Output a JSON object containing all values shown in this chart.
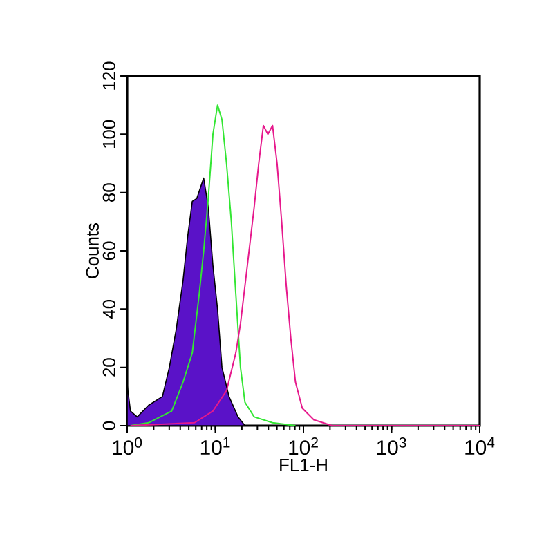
{
  "chart_data": {
    "type": "line",
    "xlabel": "FL1-H",
    "ylabel": "Counts",
    "log": "x",
    "grid": false,
    "marker": "none",
    "xlim": [
      1,
      10000
    ],
    "ylim": [
      0,
      120
    ],
    "xticks": [
      {
        "value": 1,
        "label": "10$^{0}$"
      },
      {
        "value": 10,
        "label": "10$^{1}$"
      },
      {
        "value": 100,
        "label": "10$^{2}$"
      },
      {
        "value": 1000,
        "label": "10$^{3}$"
      },
      {
        "value": 10000,
        "label": "10$^{4}$"
      }
    ],
    "yticks": [
      0,
      20,
      40,
      60,
      80,
      100,
      120
    ],
    "series": [
      {
        "type": "area",
        "color": "#5a12c8",
        "x": [
          1.0,
          1.09,
          1.3,
          1.75,
          2.51,
          3.01,
          3.6,
          4.31,
          4.86,
          5.48,
          6.17,
          7.38,
          8.32,
          9.39,
          10.6,
          11.9,
          14.3,
          18.1,
          21.7
        ],
        "values": [
          14,
          5,
          3,
          7,
          10,
          20,
          33,
          50,
          65,
          77,
          78,
          85,
          75,
          55,
          40,
          20,
          10,
          3,
          0
        ]
      },
      {
        "color": "#33e633",
        "x": [
          1.09,
          1.75,
          3.2,
          4.31,
          5.48,
          6.56,
          7.38,
          8.32,
          9.39,
          10.6,
          11.9,
          13.4,
          15.2,
          17.1,
          19.3,
          21.7,
          27.6,
          44.6,
          81.1
        ],
        "values": [
          0,
          1,
          5,
          15,
          25,
          45,
          60,
          78,
          100,
          110,
          105,
          90,
          70,
          45,
          20,
          8,
          3,
          1,
          0
        ]
      },
      {
        "color": "#e6198c",
        "x": [
          1.09,
          5.82,
          9.39,
          13.4,
          17.1,
          19.3,
          23.1,
          27.6,
          31.1,
          35.1,
          39.5,
          44.6,
          50.2,
          56.6,
          63.8,
          71.9,
          81.1,
          97.0,
          131,
          211,
          10000
        ],
        "values": [
          0,
          1,
          5,
          12,
          25,
          35,
          55,
          75,
          90,
          103,
          100,
          103,
          90,
          70,
          48,
          30,
          15,
          6,
          2,
          0,
          0
        ]
      }
    ]
  }
}
